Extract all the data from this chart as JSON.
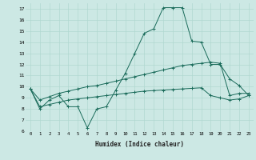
{
  "xlabel": "Humidex (Indice chaleur)",
  "background_color": "#cce8e4",
  "grid_color": "#b0d8d0",
  "line_color": "#1a6b5a",
  "x_main": [
    0,
    1,
    2,
    3,
    4,
    5,
    6,
    7,
    8,
    9,
    10,
    11,
    12,
    13,
    14,
    15,
    16,
    17,
    18,
    19,
    20,
    21,
    22,
    23
  ],
  "y_main": [
    9.8,
    8.0,
    8.8,
    9.2,
    8.2,
    8.2,
    6.3,
    8.0,
    8.2,
    9.7,
    11.2,
    13.0,
    14.8,
    15.2,
    17.1,
    17.1,
    17.1,
    14.1,
    14.0,
    12.0,
    12.0,
    10.7,
    10.1,
    9.2
  ],
  "x_line2": [
    0,
    1,
    2,
    3,
    4,
    5,
    6,
    7,
    8,
    9,
    10,
    11,
    12,
    13,
    14,
    15,
    16,
    17,
    18,
    19,
    20,
    21,
    22,
    23
  ],
  "y_line2": [
    9.8,
    8.8,
    9.1,
    9.4,
    9.6,
    9.8,
    10.0,
    10.1,
    10.3,
    10.5,
    10.7,
    10.9,
    11.1,
    11.3,
    11.5,
    11.7,
    11.9,
    12.0,
    12.1,
    12.2,
    12.1,
    9.2,
    9.4,
    9.4
  ],
  "x_line3": [
    0,
    1,
    2,
    3,
    4,
    5,
    6,
    7,
    8,
    9,
    10,
    11,
    12,
    13,
    14,
    15,
    16,
    17,
    18,
    19,
    20,
    21,
    22,
    23
  ],
  "y_line3": [
    9.8,
    8.2,
    8.4,
    8.6,
    8.8,
    8.9,
    9.0,
    9.1,
    9.2,
    9.3,
    9.4,
    9.5,
    9.6,
    9.65,
    9.7,
    9.75,
    9.8,
    9.85,
    9.9,
    9.2,
    9.0,
    8.8,
    8.9,
    9.2
  ],
  "ylim": [
    6,
    17.5
  ],
  "xlim": [
    -0.5,
    23.5
  ],
  "yticks": [
    6,
    7,
    8,
    9,
    10,
    11,
    12,
    13,
    14,
    15,
    16,
    17
  ],
  "xticks": [
    0,
    1,
    2,
    3,
    4,
    5,
    6,
    7,
    8,
    9,
    10,
    11,
    12,
    13,
    14,
    15,
    16,
    17,
    18,
    19,
    20,
    21,
    22,
    23
  ]
}
